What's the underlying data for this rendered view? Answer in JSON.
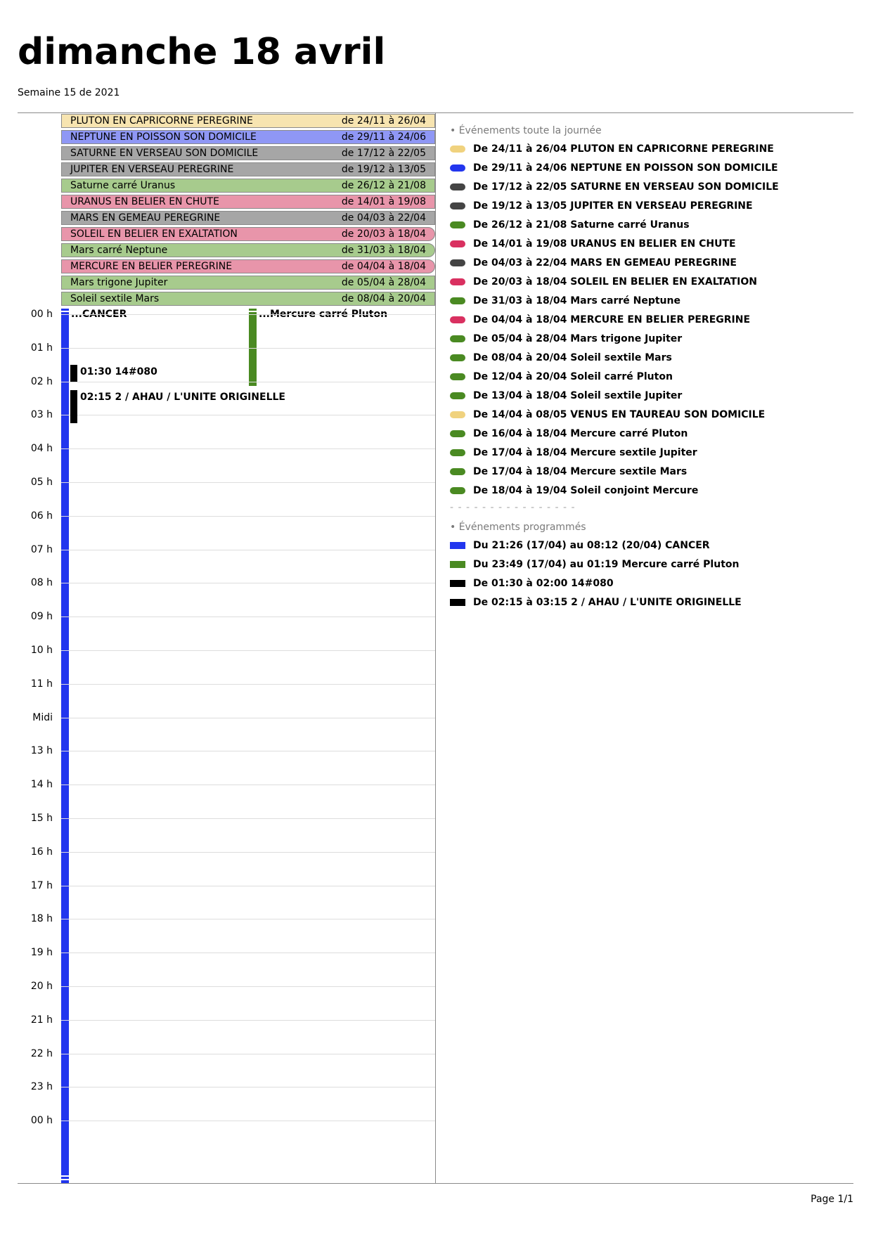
{
  "header": {
    "title": "dimanche 18 avril",
    "subtitle": "Semaine 15 de 2021"
  },
  "banners": [
    {
      "name": "PLUTON EN CAPRICORNE PEREGRINE",
      "dates": "de 24/11 à 26/04",
      "color": "#f7e4b0"
    },
    {
      "name": "NEPTUNE EN POISSON SON DOMICILE",
      "dates": "de 29/11 à 24/06",
      "color": "#8f97f5"
    },
    {
      "name": "SATURNE EN VERSEAU SON DOMICILE",
      "dates": "de 17/12 à 22/05",
      "color": "#a6a6a6"
    },
    {
      "name": "JUPITER EN VERSEAU PEREGRINE",
      "dates": "de 19/12 à 13/05",
      "color": "#a6a6a6"
    },
    {
      "name": "Saturne carré Uranus",
      "dates": "de 26/12 à 21/08",
      "color": "#a7cb8d"
    },
    {
      "name": "URANUS EN BELIER EN CHUTE",
      "dates": "de 14/01 à 19/08",
      "color": "#e895aa"
    },
    {
      "name": "MARS EN GEMEAU PEREGRINE",
      "dates": "de 04/03 à 22/04",
      "color": "#a6a6a6"
    },
    {
      "name": "SOLEIL EN BELIER EN EXALTATION",
      "dates": "de 20/03 à 18/04",
      "color": "#e895aa",
      "ends": true
    },
    {
      "name": "Mars carré Neptune",
      "dates": "de 31/03 à 18/04",
      "color": "#a7cb8d",
      "ends": true
    },
    {
      "name": "MERCURE EN BELIER PEREGRINE",
      "dates": "de 04/04 à 18/04",
      "color": "#e895aa",
      "ends": true
    },
    {
      "name": "Mars trigone Jupiter",
      "dates": "de 05/04 à 28/04",
      "color": "#a7cb8d"
    },
    {
      "name": "Soleil sextile Mars",
      "dates": "de 08/04 à 20/04",
      "color": "#a7cb8d"
    }
  ],
  "grid": {
    "hours": [
      "00 h",
      "01 h",
      "02 h",
      "03 h",
      "04 h",
      "05 h",
      "06 h",
      "07 h",
      "08 h",
      "09 h",
      "10 h",
      "11 h",
      "Midi",
      "13 h",
      "14 h",
      "15 h",
      "16 h",
      "17 h",
      "18 h",
      "19 h",
      "20 h",
      "21 h",
      "22 h",
      "23 h",
      "00 h"
    ],
    "cancer_label": "...CANCER",
    "pluton_label": "...Mercure carré Pluton",
    "events": [
      {
        "time": "01:30",
        "label": "01:30 14#080",
        "start_hour": 1.5,
        "end_hour": 2.0
      },
      {
        "time": "02:15",
        "label": "02:15 2 / AHAU / L'UNITE ORIGINELLE",
        "start_hour": 2.25,
        "end_hour": 3.25
      }
    ]
  },
  "sections": {
    "allday_title": "• Événements toute la journée",
    "scheduled_title": "• Événements programmés",
    "divider": "- - - - - - - - - - - - - - - -"
  },
  "allday_list": [
    {
      "text": "De 24/11 à 26/04 PLUTON EN CAPRICORNE PEREGRINE",
      "color": "#f0d27e"
    },
    {
      "text": "De 29/11 à 24/06 NEPTUNE EN POISSON SON DOMICILE",
      "color": "#2236ee"
    },
    {
      "text": "De 17/12 à 22/05 SATURNE EN VERSEAU SON DOMICILE",
      "color": "#444444"
    },
    {
      "text": "De 19/12 à 13/05 JUPITER EN VERSEAU PEREGRINE",
      "color": "#444444"
    },
    {
      "text": "De 26/12 à 21/08 Saturne carré Uranus",
      "color": "#4a8a22"
    },
    {
      "text": "De 14/01 à 19/08 URANUS EN BELIER EN CHUTE",
      "color": "#d93060"
    },
    {
      "text": "De 04/03 à 22/04 MARS EN GEMEAU PEREGRINE",
      "color": "#444444"
    },
    {
      "text": "De 20/03 à 18/04 SOLEIL EN BELIER EN EXALTATION",
      "color": "#d93060"
    },
    {
      "text": "De 31/03 à 18/04 Mars carré Neptune",
      "color": "#4a8a22"
    },
    {
      "text": "De 04/04 à 18/04 MERCURE EN BELIER PEREGRINE",
      "color": "#d93060"
    },
    {
      "text": "De 05/04 à 28/04 Mars trigone Jupiter",
      "color": "#4a8a22"
    },
    {
      "text": "De 08/04 à 20/04 Soleil sextile Mars",
      "color": "#4a8a22"
    },
    {
      "text": "De 12/04 à 20/04 Soleil carré Pluton",
      "color": "#4a8a22"
    },
    {
      "text": "De 13/04 à 18/04 Soleil sextile Jupiter",
      "color": "#4a8a22"
    },
    {
      "text": "De 14/04 à 08/05 VENUS EN TAUREAU SON DOMICILE",
      "color": "#f0d27e"
    },
    {
      "text": "De 16/04 à 18/04 Mercure carré Pluton",
      "color": "#4a8a22"
    },
    {
      "text": "De 17/04 à 18/04 Mercure sextile Jupiter",
      "color": "#4a8a22"
    },
    {
      "text": "De 17/04 à 18/04 Mercure sextile Mars",
      "color": "#4a8a22"
    },
    {
      "text": "De 18/04 à 19/04 Soleil conjoint Mercure",
      "color": "#4a8a22"
    }
  ],
  "scheduled_list": [
    {
      "text": "Du 21:26 (17/04) au 08:12 (20/04) CANCER",
      "color": "#2236ee"
    },
    {
      "text": "Du 23:49 (17/04) au 01:19 Mercure carré Pluton",
      "color": "#4a8a22"
    },
    {
      "text": "De 01:30 à 02:00 14#080",
      "color": "#000000"
    },
    {
      "text": "De 02:15 à 03:15 2 / AHAU / L'UNITE ORIGINELLE",
      "color": "#000000"
    }
  ],
  "footer": {
    "page": "Page 1/1"
  }
}
